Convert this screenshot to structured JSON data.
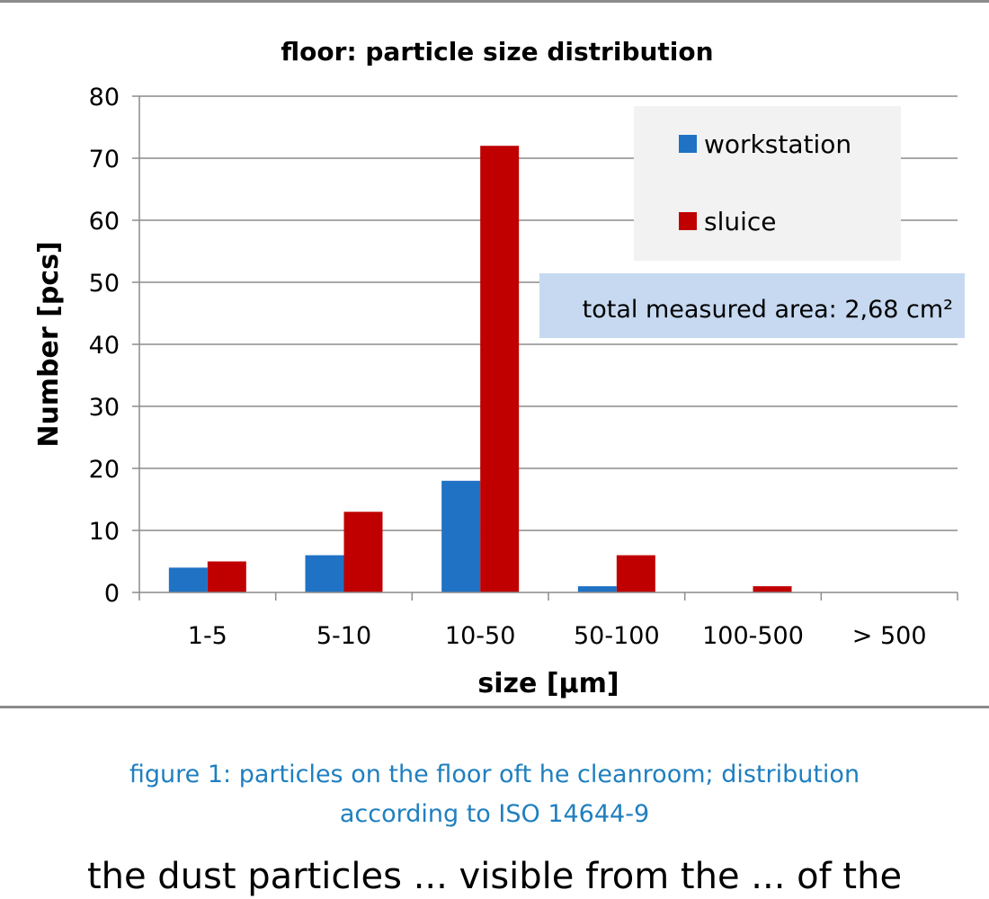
{
  "caption": {
    "line1": "figure 1: particles on the floor oft he cleanroom; distribution",
    "line2": "according to ISO 14644-9"
  },
  "body_text_partial": "the dust particles ... visible from the ... of the",
  "chart_data": {
    "type": "bar",
    "title": "floor: particle size distribution",
    "xlabel": "size [µm]",
    "ylabel": "Number [pcs]",
    "ylim": [
      0,
      80
    ],
    "yticks": [
      0,
      10,
      20,
      30,
      40,
      50,
      60,
      70,
      80
    ],
    "categories": [
      "1-5",
      "5-10",
      "10-50",
      "50-100",
      "100-500",
      "> 500"
    ],
    "series": [
      {
        "name": "workstation",
        "color": "#1f72c4",
        "values": [
          4,
          6,
          18,
          1,
          0,
          0
        ]
      },
      {
        "name": "sluice",
        "color": "#c00000",
        "values": [
          5,
          13,
          72,
          6,
          1,
          0
        ]
      }
    ],
    "grid": true,
    "legend_position": "top-right",
    "annotation": "total measured area: 2,68 cm²"
  }
}
